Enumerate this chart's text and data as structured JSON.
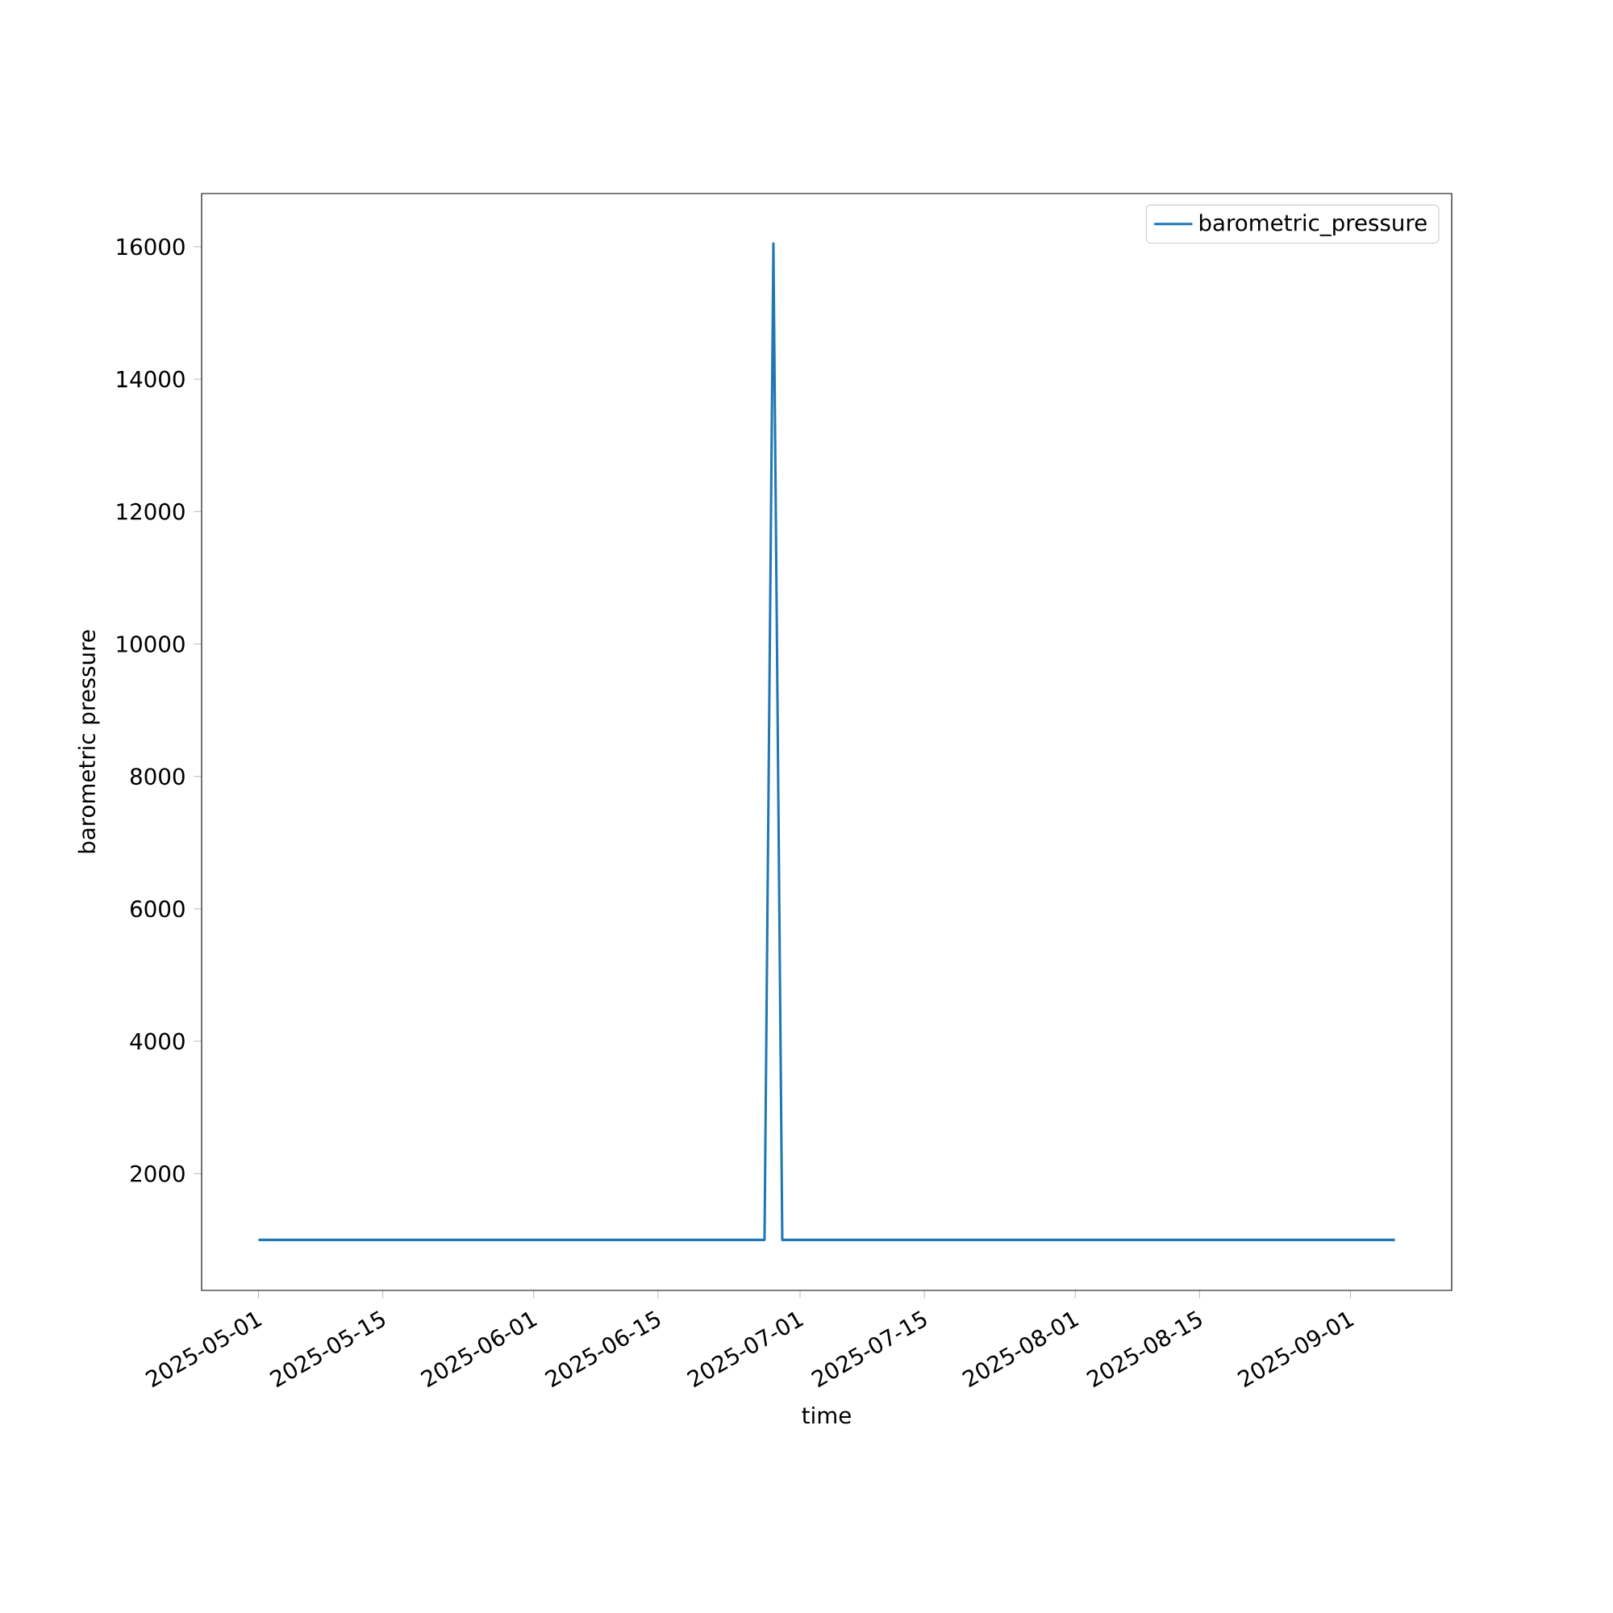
{
  "chart_data": {
    "type": "line",
    "xlabel": "time",
    "ylabel": "barometric pressure",
    "x": [
      "2025-05-01",
      "2025-05-05",
      "2025-05-08",
      "2025-05-12",
      "2025-05-15",
      "2025-05-20",
      "2025-05-25",
      "2025-06-01",
      "2025-06-05",
      "2025-06-09",
      "2025-06-14",
      "2025-06-20",
      "2025-06-27",
      "2025-06-28",
      "2025-06-29",
      "2025-07-03",
      "2025-07-06",
      "2025-07-12",
      "2025-07-20",
      "2025-07-26",
      "2025-08-01",
      "2025-08-08",
      "2025-08-15",
      "2025-08-22",
      "2025-08-25",
      "2025-08-31",
      "2025-09-06"
    ],
    "series": [
      {
        "name": "barometric_pressure",
        "color": "#1f77b4",
        "values": [
          1000,
          1000,
          1000,
          1000,
          1000,
          1000,
          1000,
          1000,
          1000,
          1000,
          1000,
          1000,
          1000,
          16050,
          1000,
          1000,
          1000,
          1000,
          1000,
          1000,
          1000,
          1000,
          1000,
          1000,
          1000,
          1000,
          1000
        ]
      }
    ],
    "xlim": [
      "2025-04-24T14:24",
      "2025-09-12T09:36"
    ],
    "ylim": [
      237,
      16803
    ],
    "xticks": [
      "2025-05-01",
      "2025-05-15",
      "2025-06-01",
      "2025-06-15",
      "2025-07-01",
      "2025-07-15",
      "2025-08-01",
      "2025-08-15",
      "2025-09-01"
    ],
    "yticks": [
      2000,
      4000,
      6000,
      8000,
      10000,
      12000,
      14000,
      16000
    ],
    "legend": "top right",
    "grid": false
  }
}
